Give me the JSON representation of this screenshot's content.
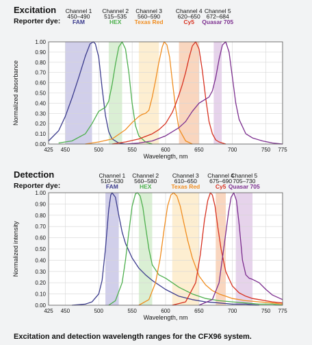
{
  "caption": "Excitation and detection wavelength ranges for the CFX96 system.",
  "colors": {
    "FAM": "#3a3a8c",
    "HEX": "#4caf4c",
    "Texas Red": "#f08c1e",
    "Cy5": "#d7301f",
    "Quasar 705": "#7b2d8e"
  },
  "band_colors": {
    "FAM": "#c9c7e6",
    "HEX": "#d4eccd",
    "Texas Red": "#fdebc9",
    "Cy5": "#f8cfb4",
    "Quasar 705": "#e2cbe8"
  },
  "chart_data": [
    {
      "type": "line",
      "title": "Excitation",
      "row_label": "Reporter dye:",
      "xlabel": "Wavelength, nm",
      "ylabel": "Normalized absorbance",
      "xlim": [
        425,
        775
      ],
      "ylim": [
        0,
        1.0
      ],
      "xticks": [
        425,
        450,
        500,
        550,
        600,
        650,
        700,
        750,
        775
      ],
      "yticks": [
        0.0,
        0.1,
        0.2,
        0.3,
        0.4,
        0.5,
        0.6,
        0.7,
        0.8,
        0.9,
        1.0
      ],
      "grid": true,
      "channels": [
        {
          "name": "Channel 1",
          "range": "450–490",
          "dye": "FAM",
          "band": [
            450,
            490
          ]
        },
        {
          "name": "Channel 2",
          "range": "515–535",
          "dye": "HEX",
          "band": [
            515,
            535
          ]
        },
        {
          "name": "Channel 3",
          "range": "560–590",
          "dye": "Texas Red",
          "band": [
            560,
            590
          ]
        },
        {
          "name": "Channel 4",
          "range": "620–650",
          "dye": "Cy5",
          "band": [
            620,
            650
          ]
        },
        {
          "name": "Channel 5",
          "range": "672–684",
          "dye": "Quasar 705",
          "band": [
            672,
            684
          ]
        }
      ],
      "series": [
        {
          "dye": "FAM",
          "x": [
            425,
            440,
            450,
            460,
            470,
            480,
            487,
            492,
            495,
            500,
            505,
            510,
            515,
            520,
            530,
            540
          ],
          "y": [
            0.03,
            0.13,
            0.27,
            0.45,
            0.65,
            0.86,
            0.98,
            1.0,
            0.98,
            0.85,
            0.55,
            0.28,
            0.12,
            0.05,
            0.01,
            0.0
          ]
        },
        {
          "dye": "HEX",
          "x": [
            440,
            460,
            480,
            490,
            500,
            510,
            515,
            520,
            525,
            530,
            535,
            540,
            545,
            550,
            555,
            560,
            570,
            580
          ],
          "y": [
            0.01,
            0.03,
            0.1,
            0.2,
            0.32,
            0.36,
            0.42,
            0.58,
            0.78,
            0.95,
            1.0,
            0.93,
            0.7,
            0.4,
            0.18,
            0.08,
            0.02,
            0.0
          ]
        },
        {
          "dye": "Texas Red",
          "x": [
            480,
            500,
            520,
            540,
            550,
            560,
            565,
            570,
            575,
            580,
            585,
            590,
            595,
            598,
            602,
            606,
            610,
            615,
            620,
            630,
            640
          ],
          "y": [
            0.0,
            0.02,
            0.05,
            0.14,
            0.21,
            0.27,
            0.29,
            0.3,
            0.33,
            0.46,
            0.62,
            0.8,
            0.95,
            1.0,
            0.97,
            0.85,
            0.62,
            0.35,
            0.15,
            0.03,
            0.0
          ]
        },
        {
          "dye": "Cy5",
          "x": [
            520,
            540,
            560,
            580,
            590,
            600,
            610,
            615,
            620,
            625,
            630,
            635,
            640,
            645,
            650,
            655,
            660,
            665,
            670,
            675,
            680,
            690
          ],
          "y": [
            0.0,
            0.02,
            0.05,
            0.1,
            0.14,
            0.2,
            0.31,
            0.39,
            0.48,
            0.58,
            0.7,
            0.84,
            0.96,
            1.0,
            0.93,
            0.72,
            0.45,
            0.22,
            0.1,
            0.04,
            0.02,
            0.0
          ]
        },
        {
          "dye": "Quasar 705",
          "x": [
            540,
            560,
            580,
            600,
            620,
            630,
            640,
            650,
            660,
            665,
            670,
            675,
            680,
            685,
            690,
            695,
            700,
            705,
            710,
            720,
            730,
            745,
            760,
            775
          ],
          "y": [
            0.0,
            0.01,
            0.03,
            0.08,
            0.16,
            0.22,
            0.32,
            0.4,
            0.44,
            0.46,
            0.52,
            0.65,
            0.83,
            0.97,
            1.0,
            0.9,
            0.65,
            0.4,
            0.24,
            0.1,
            0.06,
            0.03,
            0.01,
            0.0
          ]
        }
      ]
    },
    {
      "type": "line",
      "title": "Detection",
      "row_label": "Reporter dye:",
      "xlabel": "Wavelength, nm",
      "ylabel": "Normalized intensity",
      "xlim": [
        425,
        775
      ],
      "ylim": [
        0,
        1.0
      ],
      "xticks": [
        425,
        450,
        500,
        550,
        600,
        650,
        700,
        750,
        775
      ],
      "yticks": [
        0.0,
        0.1,
        0.2,
        0.3,
        0.4,
        0.5,
        0.6,
        0.7,
        0.8,
        0.9,
        1.0
      ],
      "grid": true,
      "channels": [
        {
          "name": "Channel 1",
          "range": "510–530",
          "dye": "FAM",
          "band": [
            510,
            530
          ]
        },
        {
          "name": "Channel 2",
          "range": "560–580",
          "dye": "HEX",
          "band": [
            560,
            580
          ]
        },
        {
          "name": "Channel 3",
          "range": "610–650",
          "dye": "Texas Red",
          "band": [
            610,
            650
          ]
        },
        {
          "name": "Channel 4",
          "range": "675–690",
          "dye": "Cy5",
          "band": [
            675,
            690
          ]
        },
        {
          "name": "Channel 5",
          "range": "705–730",
          "dye": "Quasar 705",
          "band": [
            705,
            730
          ]
        }
      ],
      "series": [
        {
          "dye": "FAM",
          "x": [
            460,
            480,
            490,
            500,
            505,
            510,
            515,
            518,
            520,
            525,
            530,
            535,
            540,
            550,
            560,
            570,
            580,
            600,
            620,
            640,
            660,
            680,
            700,
            720,
            740
          ],
          "y": [
            0.0,
            0.01,
            0.03,
            0.1,
            0.22,
            0.5,
            0.85,
            0.98,
            1.0,
            0.96,
            0.8,
            0.65,
            0.55,
            0.42,
            0.33,
            0.27,
            0.22,
            0.14,
            0.08,
            0.05,
            0.03,
            0.02,
            0.01,
            0.01,
            0.0
          ]
        },
        {
          "dye": "HEX",
          "x": [
            515,
            525,
            535,
            540,
            545,
            550,
            555,
            558,
            562,
            566,
            570,
            575,
            580,
            590,
            600,
            610,
            620,
            640,
            660,
            680,
            700,
            720,
            740,
            760,
            775
          ],
          "y": [
            0.0,
            0.04,
            0.2,
            0.4,
            0.65,
            0.88,
            0.99,
            1.0,
            0.97,
            0.87,
            0.7,
            0.5,
            0.36,
            0.27,
            0.24,
            0.2,
            0.16,
            0.1,
            0.06,
            0.04,
            0.03,
            0.02,
            0.01,
            0.01,
            0.0
          ]
        },
        {
          "dye": "Texas Red",
          "x": [
            560,
            575,
            585,
            592,
            598,
            603,
            608,
            612,
            617,
            622,
            627,
            633,
            640,
            650,
            660,
            670,
            680,
            690,
            700,
            720,
            740,
            760,
            775
          ],
          "y": [
            0.0,
            0.05,
            0.2,
            0.42,
            0.68,
            0.88,
            0.98,
            1.0,
            0.97,
            0.88,
            0.74,
            0.58,
            0.42,
            0.26,
            0.18,
            0.13,
            0.1,
            0.08,
            0.06,
            0.04,
            0.03,
            0.02,
            0.01
          ]
        },
        {
          "dye": "Cy5",
          "x": [
            610,
            630,
            645,
            652,
            658,
            663,
            667,
            670,
            674,
            678,
            683,
            690,
            700,
            710,
            720,
            730,
            740,
            760,
            775
          ],
          "y": [
            0.0,
            0.03,
            0.2,
            0.45,
            0.75,
            0.93,
            1.0,
            0.98,
            0.88,
            0.7,
            0.5,
            0.3,
            0.17,
            0.11,
            0.08,
            0.06,
            0.05,
            0.03,
            0.02
          ]
        },
        {
          "dye": "Quasar 705",
          "x": [
            650,
            670,
            680,
            688,
            694,
            698,
            702,
            706,
            710,
            715,
            720,
            725,
            730,
            740,
            750,
            760,
            775
          ],
          "y": [
            0.0,
            0.05,
            0.2,
            0.55,
            0.82,
            0.96,
            1.0,
            0.93,
            0.72,
            0.4,
            0.27,
            0.24,
            0.23,
            0.2,
            0.14,
            0.09,
            0.05
          ]
        }
      ]
    }
  ]
}
